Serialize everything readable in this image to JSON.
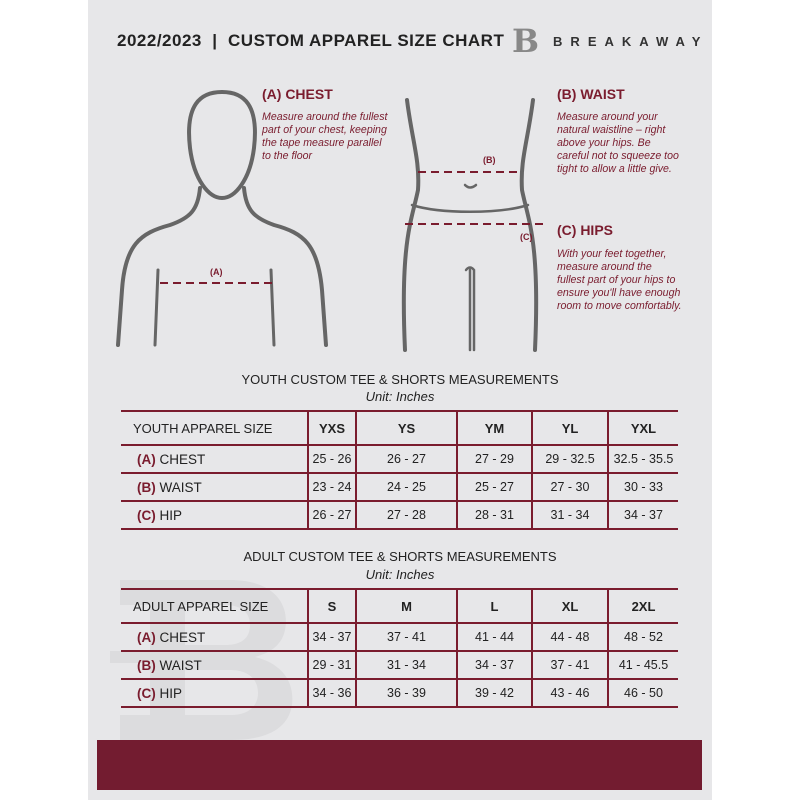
{
  "header": {
    "title": "2022/2023  |  CUSTOM APPAREL SIZE CHART",
    "brand": "BREAKAWAY",
    "logo_letter": "B"
  },
  "colors": {
    "accent": "#7a1c2e",
    "background": "#e7e7e9"
  },
  "guides": {
    "chest": {
      "heading": "(A) CHEST",
      "text": "Measure around the fullest part of your chest, keeping the tape measure parallel to the floor",
      "marker": "(A)"
    },
    "waist": {
      "heading": "(B) WAIST",
      "text": "Measure around your natural waistline – right above your hips. Be careful not to squeeze too tight to allow a little give.",
      "marker": "(B)"
    },
    "hips": {
      "heading": "(C) HIPS",
      "text": "With your feet together, measure around the fullest part of your hips to ensure you'll have enough room to move comfortably.",
      "marker": "(C)"
    }
  },
  "youth": {
    "title": "YOUTH CUSTOM TEE & SHORTS MEASUREMENTS",
    "unit": "Unit: Inches",
    "size_label": "YOUTH APPAREL SIZE",
    "sizes": [
      "YXS",
      "YS",
      "YM",
      "YL",
      "YXL"
    ],
    "rows": [
      {
        "letter": "(A)",
        "name": "CHEST",
        "values": [
          "25 - 26",
          "26 - 27",
          "27 - 29",
          "29 - 32.5",
          "32.5 - 35.5"
        ]
      },
      {
        "letter": "(B)",
        "name": "WAIST",
        "values": [
          "23 - 24",
          "24 - 25",
          "25 - 27",
          "27 - 30",
          "30 - 33"
        ]
      },
      {
        "letter": "(C)",
        "name": "HIP",
        "values": [
          "26 - 27",
          "27 - 28",
          "28 - 31",
          "31 - 34",
          "34 - 37"
        ]
      }
    ]
  },
  "adult": {
    "title": "ADULT CUSTOM TEE & SHORTS MEASUREMENTS",
    "unit": "Unit: Inches",
    "size_label": "ADULT APPAREL SIZE",
    "sizes": [
      "S",
      "M",
      "L",
      "XL",
      "2XL"
    ],
    "rows": [
      {
        "letter": "(A)",
        "name": "CHEST",
        "values": [
          "34 - 37",
          "37 - 41",
          "41 - 44",
          "44 - 48",
          "48 - 52"
        ]
      },
      {
        "letter": "(B)",
        "name": "WAIST",
        "values": [
          "29 - 31",
          "31 - 34",
          "34 - 37",
          "37 - 41",
          "41 - 45.5"
        ]
      },
      {
        "letter": "(C)",
        "name": "HIP",
        "values": [
          "34 - 36",
          "36 - 39",
          "39 - 42",
          "43 - 46",
          "46 - 50"
        ]
      }
    ]
  }
}
